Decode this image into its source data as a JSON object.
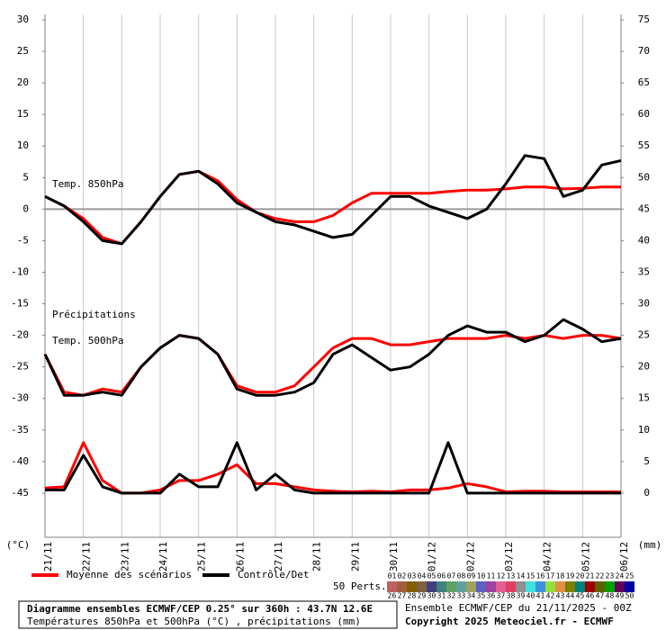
{
  "chart_data": {
    "type": "line",
    "title": "Diagramme ensembles ECMWF/CEP 0.25° sur 360h : 43.7N 12.6E",
    "subtitle": "Températures 850hPa et 500hPa (°C) , précipitations (mm)",
    "run_info": "Ensemble ECMWF/CEP du 21/11/2025 - 00Z",
    "copyright": "Copyright 2025 Meteociel.fr - ECMWF",
    "y_label": "(°C)",
    "y2_label": "(mm)",
    "annotations": [
      "Temp. 850hPa",
      "Précipitations",
      "Temp. 500hPa"
    ],
    "x": [
      0,
      12,
      24,
      36,
      48,
      60,
      72,
      84,
      96,
      108,
      120,
      132,
      144,
      156,
      168,
      180,
      192,
      204,
      216,
      228,
      240,
      252,
      264,
      276,
      288,
      300,
      312,
      324,
      336,
      348,
      360
    ],
    "xlim": [
      0,
      360
    ],
    "xticks": [
      {
        "value": 0,
        "label": "21/11"
      },
      {
        "value": 24,
        "label": "22/11"
      },
      {
        "value": 48,
        "label": "23/11"
      },
      {
        "value": 72,
        "label": "24/11"
      },
      {
        "value": 96,
        "label": "25/11"
      },
      {
        "value": 120,
        "label": "26/11"
      },
      {
        "value": 144,
        "label": "27/11"
      },
      {
        "value": 168,
        "label": "28/11"
      },
      {
        "value": 192,
        "label": "29/11"
      },
      {
        "value": 216,
        "label": "30/11"
      },
      {
        "value": 240,
        "label": "01/12"
      },
      {
        "value": 264,
        "label": "02/12"
      },
      {
        "value": 288,
        "label": "03/12"
      },
      {
        "value": 312,
        "label": "04/12"
      },
      {
        "value": 336,
        "label": "05/12"
      },
      {
        "value": 360,
        "label": "06/12"
      }
    ],
    "ylim": [
      -52,
      30
    ],
    "yticks": [
      30,
      25,
      20,
      15,
      10,
      5,
      0,
      -5,
      -10,
      -15,
      -20,
      -25,
      -30,
      -35,
      -40,
      -45
    ],
    "y2lim": [
      -7,
      75
    ],
    "y2ticks": [
      75,
      70,
      65,
      60,
      55,
      50,
      45,
      40,
      35,
      30,
      25,
      20,
      15,
      10,
      5,
      0
    ],
    "zero_line": 0,
    "grid": true,
    "series": [
      {
        "name": "Moyenne des scénarios",
        "color": "#ff0000",
        "t850": [
          2,
          0.5,
          -1.5,
          -4.5,
          -5.5,
          -2,
          2,
          5.5,
          6,
          4.5,
          1.5,
          -0.5,
          -1.5,
          -2,
          -2,
          -1,
          1,
          2.5,
          2.5,
          2.5,
          2.5,
          2.8,
          3,
          3,
          3.2,
          3.5,
          3.5,
          3.2,
          3.3,
          3.5,
          3.5
        ],
        "t500": [
          -23,
          -29,
          -29.5,
          -28.5,
          -29,
          -25,
          -22,
          -20,
          -20.5,
          -23,
          -28,
          -29,
          -29,
          -28,
          -25,
          -22,
          -20.5,
          -20.5,
          -21.5,
          -21.5,
          -21,
          -20.5,
          -20.5,
          -20.5,
          -20,
          -20.5,
          -20,
          -20.5,
          -20,
          -20,
          -20.5
        ],
        "precip": [
          0.8,
          1,
          8,
          2,
          0,
          0,
          0.5,
          2,
          2,
          3,
          4.5,
          1.5,
          1.5,
          1,
          0.5,
          0.3,
          0.2,
          0.3,
          0.2,
          0.5,
          0.5,
          0.8,
          1.5,
          1,
          0.2,
          0.3,
          0.3,
          0.2,
          0.2,
          0.2,
          0.2
        ]
      },
      {
        "name": "Contrôle/Det",
        "color": "#000000",
        "t850": [
          2,
          0.5,
          -2,
          -5,
          -5.5,
          -2,
          2,
          5.5,
          6,
          4,
          1,
          -0.5,
          -2,
          -2.5,
          -3.5,
          -4.5,
          -4,
          -1,
          2,
          2,
          0.5,
          -0.5,
          -1.5,
          0,
          4,
          8.5,
          8,
          2,
          3,
          7,
          7.7
        ],
        "t500": [
          -23,
          -29.5,
          -29.5,
          -29,
          -29.5,
          -25,
          -22,
          -20,
          -20.5,
          -23,
          -28.5,
          -29.5,
          -29.5,
          -29,
          -27.5,
          -23,
          -21.5,
          -23.5,
          -25.5,
          -25,
          -23,
          -20,
          -18.5,
          -19.5,
          -19.5,
          -21,
          -20,
          -17.5,
          -19,
          -21,
          -20.5
        ],
        "precip": [
          0.5,
          0.5,
          6,
          1,
          0,
          0,
          0,
          3,
          1,
          1,
          8,
          0.5,
          3,
          0.5,
          0,
          0,
          0,
          0,
          0,
          0,
          0,
          8,
          0,
          0,
          0,
          0,
          0,
          0,
          0,
          0,
          0
        ]
      }
    ],
    "perturbations": {
      "label": "50 Perts.",
      "members": [
        {
          "name": "01",
          "color": "#c8a0a0"
        },
        {
          "name": "02",
          "color": "#d0b090"
        },
        {
          "name": "03",
          "color": "#b08080"
        },
        {
          "name": "04",
          "color": "#a04040"
        },
        {
          "name": "05",
          "color": "#4080c0"
        },
        {
          "name": "06",
          "color": "#40c0c0"
        },
        {
          "name": "07",
          "color": "#80c040"
        },
        {
          "name": "08",
          "color": "#40c080"
        },
        {
          "name": "09",
          "color": "#c0c040"
        },
        {
          "name": "10",
          "color": "#8080ff"
        },
        {
          "name": "11",
          "color": "#c080c0"
        },
        {
          "name": "12",
          "color": "#ff80c0"
        },
        {
          "name": "13",
          "color": "#ff4080"
        },
        {
          "name": "14",
          "color": "#c0c0c0"
        },
        {
          "name": "15",
          "color": "#80ffff"
        },
        {
          "name": "16",
          "color": "#80c0ff"
        },
        {
          "name": "17",
          "color": "#c0ff80"
        },
        {
          "name": "18",
          "color": "#ffc080"
        },
        {
          "name": "19",
          "color": "#a0a040"
        },
        {
          "name": "20",
          "color": "#40a0a0"
        },
        {
          "name": "21",
          "color": "#c04040"
        },
        {
          "name": "22",
          "color": "#808040"
        },
        {
          "name": "23",
          "color": "#40c040"
        },
        {
          "name": "24",
          "color": "#804080"
        },
        {
          "name": "25",
          "color": "#4040c0"
        },
        {
          "name": "26",
          "color": "#c06060"
        },
        {
          "name": "27",
          "color": "#a06040"
        },
        {
          "name": "28",
          "color": "#806000"
        },
        {
          "name": "29",
          "color": "#806040"
        },
        {
          "name": "30",
          "color": "#404080"
        },
        {
          "name": "31",
          "color": "#408080"
        },
        {
          "name": "32",
          "color": "#60a060"
        },
        {
          "name": "33",
          "color": "#60a0a0"
        },
        {
          "name": "34",
          "color": "#a0a060"
        },
        {
          "name": "35",
          "color": "#6060c0"
        },
        {
          "name": "36",
          "color": "#a040a0"
        },
        {
          "name": "37",
          "color": "#e06090"
        },
        {
          "name": "38",
          "color": "#e04060"
        },
        {
          "name": "39",
          "color": "#909090"
        },
        {
          "name": "40",
          "color": "#40e0e0"
        },
        {
          "name": "41",
          "color": "#4090e0"
        },
        {
          "name": "42",
          "color": "#90e040"
        },
        {
          "name": "43",
          "color": "#e09040"
        },
        {
          "name": "44",
          "color": "#808000"
        },
        {
          "name": "45",
          "color": "#008080"
        },
        {
          "name": "46",
          "color": "#a00000"
        },
        {
          "name": "47",
          "color": "#606000"
        },
        {
          "name": "48",
          "color": "#00a000"
        },
        {
          "name": "49",
          "color": "#600060"
        },
        {
          "name": "50",
          "color": "#0000a0"
        }
      ]
    }
  }
}
